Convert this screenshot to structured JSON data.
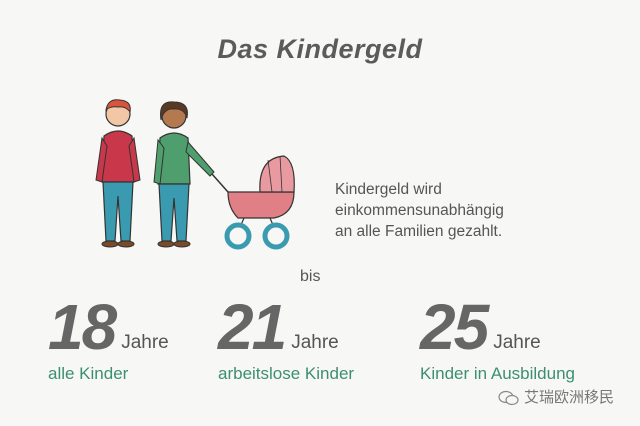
{
  "title": "Das Kindergeld",
  "description": {
    "line1": "Kindergeld wird",
    "line2": "einkommensunabhängig",
    "line3": "an alle Familien gezahlt."
  },
  "bis": "bis",
  "stats": [
    {
      "number": "18",
      "unit": "Jahre",
      "label": "alle Kinder"
    },
    {
      "number": "21",
      "unit": "Jahre",
      "label": "arbeitslose Kinder"
    },
    {
      "number": "25",
      "unit": "Jahre",
      "label": "Kinder in Ausbildung"
    }
  ],
  "watermark": "艾瑞欧洲移民",
  "colors": {
    "background": "#f7f7f5",
    "accent_green": "#3d8f72",
    "number_gray": "#666666",
    "stroller_pink": "#e07f86",
    "man_shirt": "#c8374a",
    "woman_shirt": "#4f9e6e",
    "jeans": "#3a9bb0"
  },
  "icons": [
    "man-figure",
    "woman-figure",
    "stroller-icon",
    "wechat-icon"
  ]
}
